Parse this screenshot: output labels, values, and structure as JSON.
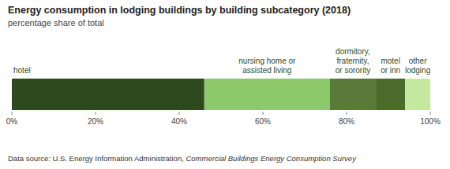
{
  "chart_data": {
    "type": "bar",
    "orientation": "horizontal",
    "stacked": true,
    "title": "Energy consumption in lodging buildings by building subcategory (2018)",
    "subtitle": "percentage share of total",
    "categories": [
      null
    ],
    "series": [
      {
        "name": "hotel",
        "color": "#2d4a1e",
        "values": [
          46
        ]
      },
      {
        "name": "nursing home or\nassisted living",
        "color": "#8dc86a",
        "values": [
          30
        ]
      },
      {
        "name": "dormitory,\nfraternity,\nor sorority",
        "color": "#5a7a3a",
        "values": [
          11
        ]
      },
      {
        "name": "motel\nor inn",
        "color": "#4a6b2a",
        "values": [
          7
        ]
      },
      {
        "name": "other\nlodging",
        "color": "#c5e8a0",
        "values": [
          6
        ]
      }
    ],
    "xlim": [
      0,
      100
    ],
    "xticks": [
      {
        "value": 0,
        "label": "0%"
      },
      {
        "value": 20,
        "label": "20%"
      },
      {
        "value": 40,
        "label": "40%"
      },
      {
        "value": 60,
        "label": "60%"
      },
      {
        "value": 80,
        "label": "80%"
      },
      {
        "value": 100,
        "label": "100%"
      }
    ],
    "tick_labels": "x",
    "grid": false,
    "annotations": [
      "Data source: U.S. Energy Information Administration, ",
      "Commercial Buildings Energy Consumption Survey"
    ]
  }
}
